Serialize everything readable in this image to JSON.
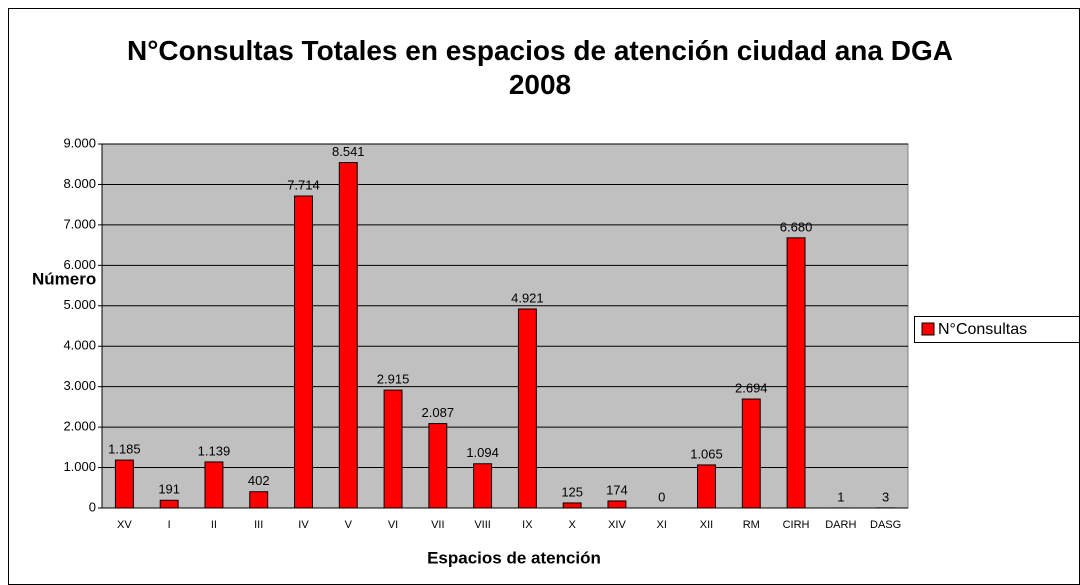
{
  "chart_data": {
    "type": "bar",
    "title": "N°Consultas Totales en espacios de atención ciudad ana DGA 2008",
    "x_label": "Espacios de atención",
    "y_label": "Número",
    "categories": [
      "XV",
      "I",
      "II",
      "III",
      "IV",
      "V",
      "VI",
      "VII",
      "VIII",
      "IX",
      "X",
      "XIV",
      "XI",
      "XII",
      "RM",
      "CIRH",
      "DARH",
      "DASG"
    ],
    "series": [
      {
        "name": "N°Consultas",
        "color": "#ff0000",
        "values": [
          1185,
          191,
          1139,
          402,
          7714,
          8541,
          2915,
          2087,
          1094,
          4921,
          125,
          174,
          0,
          1065,
          2694,
          6680,
          1,
          3
        ],
        "value_labels": [
          "1.185",
          "191",
          "1.139",
          "402",
          "7.714",
          "8.541",
          "2.915",
          "2.087",
          "1.094",
          "4.921",
          "125",
          "174",
          "0",
          "1.065",
          "2.694",
          "6.680",
          "1",
          "3"
        ]
      }
    ],
    "ylim": [
      0,
      9000
    ],
    "yticks": [
      0,
      {
        "value": 1000,
        "label": "1.000"
      },
      {
        "value": 2000,
        "label": "2.000"
      },
      {
        "value": 3000,
        "label": "3.000"
      },
      {
        "value": 4000,
        "label": "4.000"
      },
      {
        "value": 5000,
        "label": "5.000"
      },
      {
        "value": 6000,
        "label": "6.000"
      },
      {
        "value": 7000,
        "label": "7.000"
      },
      {
        "value": 8000,
        "label": "8.000"
      },
      {
        "value": 9000,
        "label": "9.000"
      }
    ],
    "grid": true,
    "legend": "right"
  }
}
